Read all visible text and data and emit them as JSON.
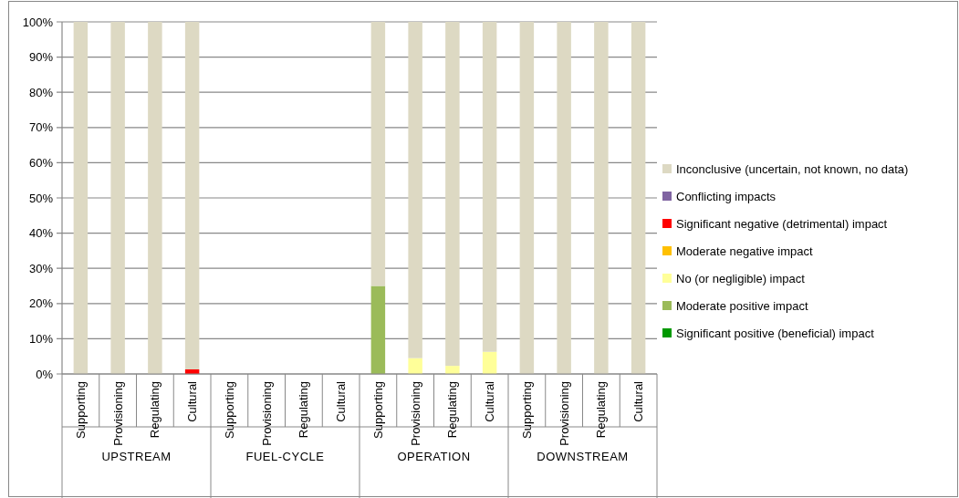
{
  "chart_data": {
    "type": "bar",
    "stacked": true,
    "categories": [
      "Supporting",
      "Provisioning",
      "Regulating",
      "Cultural",
      "Supporting",
      "Provisioning",
      "Regulating",
      "Cultural",
      "Supporting",
      "Provisioning",
      "Regulating",
      "Cultural",
      "Supporting",
      "Provisioning",
      "Regulating",
      "Cultural"
    ],
    "series": [
      {
        "name": "Significant positive (beneficial) impact",
        "color": "#009900",
        "values": [
          0,
          0,
          0,
          0,
          0,
          0,
          0,
          0,
          0,
          0,
          0,
          0,
          0,
          0,
          0,
          0
        ]
      },
      {
        "name": "Moderate positive impact",
        "color": "#9bbb59",
        "values": [
          0,
          0,
          0,
          0,
          0,
          0,
          0,
          0,
          25,
          0,
          0,
          0,
          0,
          0,
          0,
          0
        ]
      },
      {
        "name": "No (or negligible) impact",
        "color": "#ffff99",
        "values": [
          0,
          0,
          0,
          0,
          0,
          0,
          0,
          0,
          0,
          4.5,
          2.3,
          6.3,
          0,
          0,
          0,
          0
        ]
      },
      {
        "name": "Moderate negative impact",
        "color": "#ffc000",
        "values": [
          0,
          0,
          0,
          0,
          0,
          0,
          0,
          0,
          0,
          0,
          0,
          0,
          0,
          0,
          0,
          0
        ]
      },
      {
        "name": "Significant negative (detrimental) impact",
        "color": "#ff0000",
        "values": [
          0,
          0,
          0,
          1.3,
          0,
          0,
          0,
          0,
          0,
          0,
          0,
          0,
          0,
          0,
          0,
          0
        ]
      },
      {
        "name": "Conflicting impacts",
        "color": "#8064a2",
        "values": [
          0,
          0,
          0,
          0,
          0,
          0,
          0,
          0,
          0,
          0,
          0,
          0,
          0,
          0,
          0,
          0
        ]
      },
      {
        "name": "Inconclusive (uncertain, not known, no data)",
        "color": "#ddd9c3",
        "values": [
          100,
          100,
          100,
          98.7,
          0,
          0,
          0,
          0,
          75,
          95.5,
          97.7,
          93.7,
          100,
          100,
          100,
          100
        ]
      }
    ],
    "annotations": [
      "UPSTREAM",
      "FUEL-CYCLE",
      "OPERATION",
      "DOWNSTREAM"
    ],
    "ylim": [
      0,
      100
    ],
    "yticks": [
      {
        "value": 0,
        "label": "0%"
      },
      {
        "value": 10,
        "label": "10%"
      },
      {
        "value": 20,
        "label": "20%"
      },
      {
        "value": 30,
        "label": "30%"
      },
      {
        "value": 40,
        "label": "40%"
      },
      {
        "value": 50,
        "label": "50%"
      },
      {
        "value": 60,
        "label": "60%"
      },
      {
        "value": 70,
        "label": "70%"
      },
      {
        "value": 80,
        "label": "80%"
      },
      {
        "value": 90,
        "label": "90%"
      },
      {
        "value": 100,
        "label": "100%"
      }
    ],
    "grid": "y",
    "legend": "right"
  }
}
